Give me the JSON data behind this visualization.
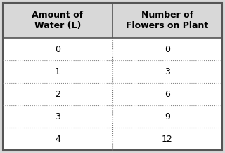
{
  "col1_header": "Amount of\nWater (L)",
  "col2_header": "Number of\nFlowers on Plant",
  "col1_data": [
    "0",
    "1",
    "2",
    "3",
    "4"
  ],
  "col2_data": [
    "0",
    "3",
    "6",
    "9",
    "12"
  ],
  "bg_color": "#d8d8d8",
  "header_bg": "#d8d8d8",
  "row_bg": "#ffffff",
  "border_color": "#888888",
  "text_color": "#000000",
  "font_size": 9,
  "header_font_size": 9
}
